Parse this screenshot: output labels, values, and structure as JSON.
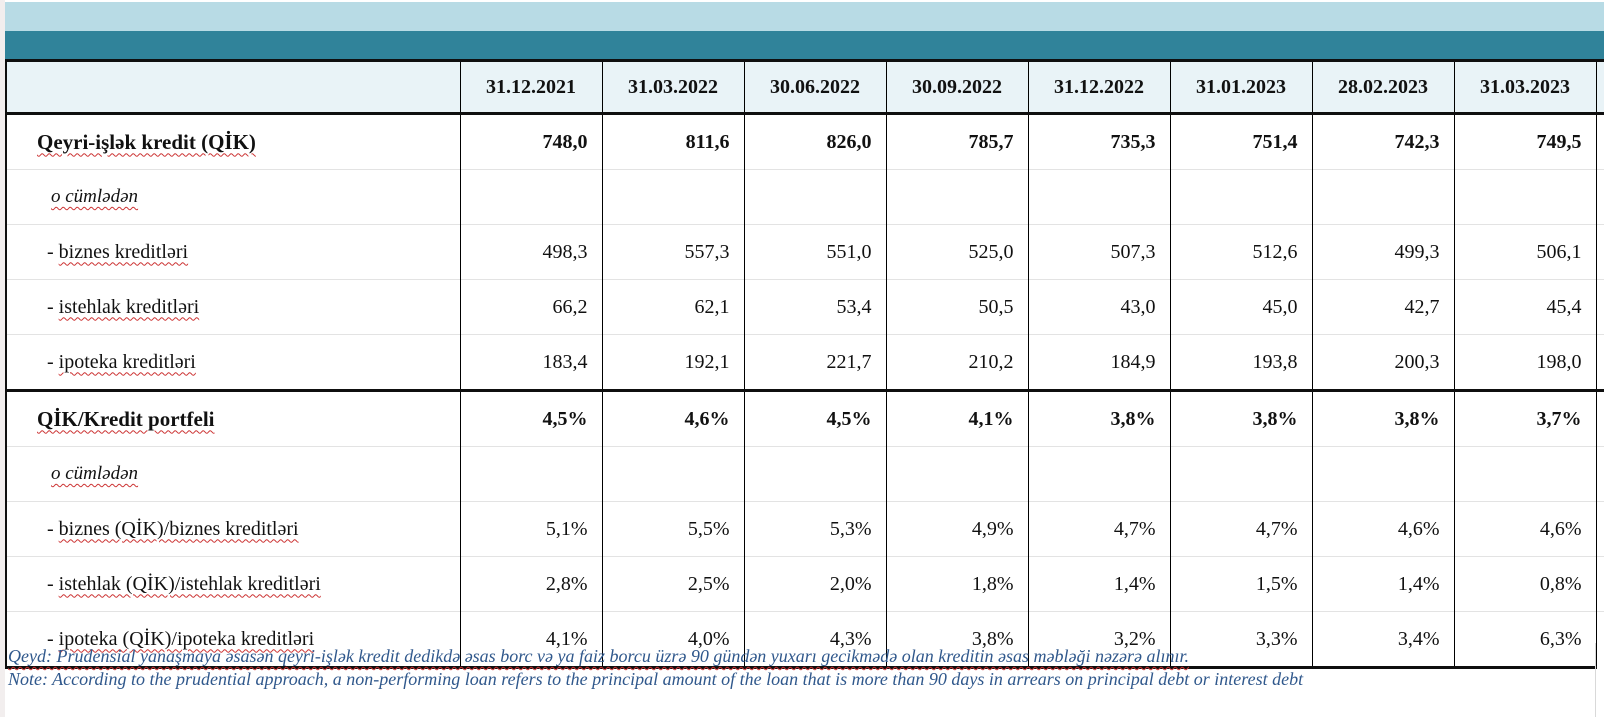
{
  "banner": {
    "strip_color": "#f2eeee",
    "light_bar_color": "#b8dbe5",
    "teal_bar_color": "#30839a"
  },
  "table": {
    "corner_label": "",
    "column_headers": [
      "31.12.2021",
      "31.03.2022",
      "30.06.2022",
      "30.09.2022",
      "31.12.2022",
      "31.01.2023",
      "28.02.2023",
      "31.03.2023"
    ],
    "rows": [
      {
        "label_prefix": "",
        "label_text": "Qeyri-işlək kredit (QİK)",
        "style": "bold",
        "section_start": false,
        "values": [
          "748,0",
          "811,6",
          "826,0",
          "785,7",
          "735,3",
          "751,4",
          "742,3",
          "749,5"
        ]
      },
      {
        "label_prefix": "",
        "label_text": "o cümlədən",
        "style": "italic",
        "section_start": false,
        "values": [
          "",
          "",
          "",
          "",
          "",
          "",
          "",
          ""
        ]
      },
      {
        "label_prefix": "- ",
        "label_text": "biznes kreditləri",
        "style": "sub",
        "section_start": false,
        "values": [
          "498,3",
          "557,3",
          "551,0",
          "525,0",
          "507,3",
          "512,6",
          "499,3",
          "506,1"
        ]
      },
      {
        "label_prefix": "- ",
        "label_text": "istehlak kreditləri",
        "style": "sub",
        "section_start": false,
        "values": [
          "66,2",
          "62,1",
          "53,4",
          "50,5",
          "43,0",
          "45,0",
          "42,7",
          "45,4"
        ]
      },
      {
        "label_prefix": "- ",
        "label_text": "ipoteka kreditləri",
        "style": "sub",
        "section_start": false,
        "values": [
          "183,4",
          "192,1",
          "221,7",
          "210,2",
          "184,9",
          "193,8",
          "200,3",
          "198,0"
        ]
      },
      {
        "label_prefix": "",
        "label_text": "QİK/Kredit portfeli",
        "style": "bold",
        "section_start": true,
        "values": [
          "4,5%",
          "4,6%",
          "4,5%",
          "4,1%",
          "3,8%",
          "3,8%",
          "3,8%",
          "3,7%"
        ]
      },
      {
        "label_prefix": "",
        "label_text": "o cümlədən",
        "style": "italic",
        "section_start": false,
        "values": [
          "",
          "",
          "",
          "",
          "",
          "",
          "",
          ""
        ]
      },
      {
        "label_prefix": "- ",
        "label_text": "biznes (QİK)/biznes kreditləri",
        "style": "sub",
        "section_start": false,
        "values": [
          "5,1%",
          "5,5%",
          "5,3%",
          "4,9%",
          "4,7%",
          "4,7%",
          "4,6%",
          "4,6%"
        ]
      },
      {
        "label_prefix": "- ",
        "label_text": "istehlak (QİK)/istehlak kreditləri",
        "style": "sub",
        "section_start": false,
        "values": [
          "2,8%",
          "2,5%",
          "2,0%",
          "1,8%",
          "1,4%",
          "1,5%",
          "1,4%",
          "0,8%"
        ]
      },
      {
        "label_prefix": "- ",
        "label_text": "ipoteka (QİK)/ipoteka kreditləri",
        "style": "sub",
        "section_start": false,
        "values": [
          "4,1%",
          "4,0%",
          "4,3%",
          "3,8%",
          "3,2%",
          "3,3%",
          "3,4%",
          "6,3%"
        ]
      }
    ]
  },
  "notes": {
    "az": "Qeyd: Prudensial yanaşmaya əsasən qeyri-işlək kredit dedikdə əsas borc və ya faiz borcu üzrə 90 gündən yuxarı gecikmədə olan kreditin əsas məbləği nəzərə alınır.",
    "en": "Note: According to the prudential approach, a non-performing loan refers to the principal amount of the loan that is more than 90 days in arrears on principal debt or interest debt"
  },
  "colors": {
    "header_row_bg": "#e9f3f7",
    "note_text": "#30588c",
    "spellcheck_underline": "#cc3333",
    "thick_border": "#0f0f0f",
    "row_separator": "#e3e3e3"
  }
}
